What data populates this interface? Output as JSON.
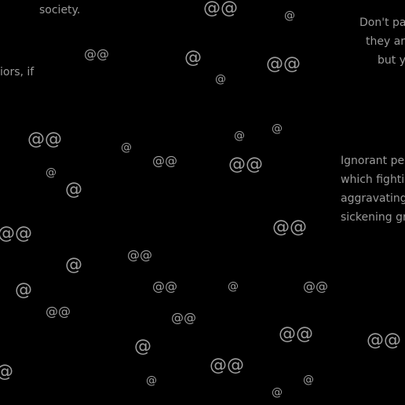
{
  "text_fragments": {
    "top_left": "society.",
    "mid_left": "iors, if",
    "top_right_lines": [
      "Don't part",
      "they are",
      "but yo"
    ],
    "right_block_lines": [
      "Ignorant peop",
      "which fighting",
      "aggravating, b",
      "sickening gra"
    ]
  },
  "symbols": {
    "single": "@",
    "double": "@@"
  }
}
